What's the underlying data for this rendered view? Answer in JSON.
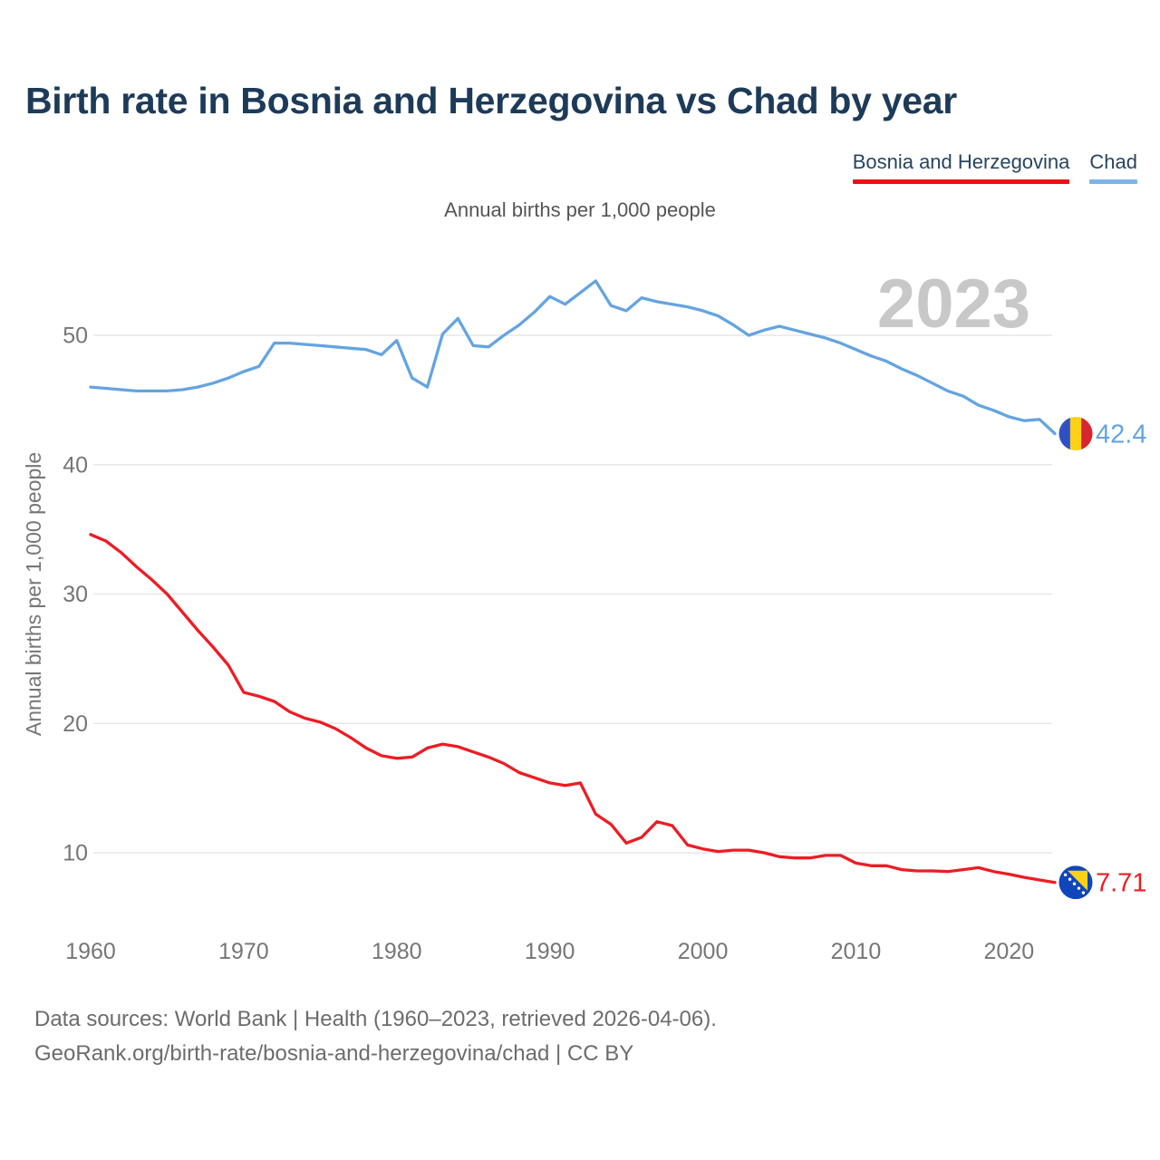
{
  "header": {
    "title": "Birth rate in Bosnia and Herzegovina vs Chad by year"
  },
  "legend": [
    {
      "label": "Bosnia and Herzegovina",
      "underline_color": "#ee1111"
    },
    {
      "label": "Chad",
      "underline_color": "#7db5e8"
    }
  ],
  "watermark": "2023",
  "footer": {
    "line1": "Data sources: World Bank | Health (1960–2023, retrieved 2026-04-06).",
    "line2": "GeoRank.org/birth-rate/bosnia-and-herzegovina/chad | CC BY"
  },
  "colors": {
    "title_text": "#1d3b59",
    "legend_text": "#27455f",
    "subtitle_text": "#555555",
    "axis_text": "#767676",
    "gridline": "#e7e7e7",
    "watermark_text": "#c8c8c8",
    "footer_text": "#6c6c6c",
    "background": "#ffffff"
  },
  "flag_colors": {
    "chad": {
      "stripes": [
        "#3150c2",
        "#fcd116",
        "#d8252f"
      ]
    },
    "bosnia": {
      "field": "#1046bc",
      "triangle": "#fdd216",
      "stars": "#ffffff"
    }
  },
  "chart_data": {
    "type": "line",
    "title": "Birth rate in Bosnia and Herzegovina vs Chad by year",
    "subtitle": "Annual births per 1,000 people",
    "ylabel": "Annual births per 1,000 people",
    "xlabel": "",
    "x_start": 1960,
    "x_end": 2023,
    "xticks": [
      1960,
      1970,
      1980,
      1990,
      2000,
      2010,
      2020
    ],
    "yticks": [
      10,
      20,
      30,
      40,
      50
    ],
    "grid": "horizontal",
    "legend_position": "top-right",
    "series": [
      {
        "name": "Chad",
        "color": "#64a4e1",
        "end_label": "42.4",
        "flag_icon": "chad-flag-icon",
        "values": [
          46.0,
          45.9,
          45.8,
          45.7,
          45.7,
          45.7,
          45.8,
          46.0,
          46.3,
          46.7,
          47.2,
          47.6,
          49.4,
          49.4,
          49.3,
          49.2,
          49.1,
          49.0,
          48.9,
          48.5,
          49.6,
          46.7,
          46.0,
          50.1,
          51.3,
          49.2,
          49.1,
          50.0,
          50.8,
          51.8,
          53.0,
          52.4,
          53.3,
          54.2,
          52.3,
          51.9,
          52.9,
          52.6,
          52.4,
          52.2,
          51.9,
          51.5,
          50.8,
          50.0,
          50.4,
          50.7,
          50.4,
          50.1,
          49.8,
          49.4,
          48.9,
          48.4,
          48.0,
          47.4,
          46.9,
          46.3,
          45.7,
          45.3,
          44.6,
          44.2,
          43.7,
          43.4,
          43.5,
          42.4
        ]
      },
      {
        "name": "Bosnia and Herzegovina",
        "color": "#ed1c24",
        "end_label": "7.71",
        "flag_icon": "bosnia-and-herzegovina-flag-icon",
        "values": [
          34.6,
          34.1,
          33.2,
          32.1,
          31.1,
          30.0,
          28.6,
          27.2,
          25.9,
          24.5,
          22.4,
          22.1,
          21.7,
          20.9,
          20.4,
          20.1,
          19.6,
          18.9,
          18.1,
          17.5,
          17.3,
          17.4,
          18.1,
          18.4,
          18.2,
          17.8,
          17.4,
          16.9,
          16.2,
          15.8,
          15.4,
          15.2,
          15.4,
          13.0,
          12.2,
          10.75,
          11.2,
          12.4,
          12.1,
          10.6,
          10.3,
          10.1,
          10.2,
          10.2,
          10.0,
          9.7,
          9.6,
          9.6,
          9.8,
          9.8,
          9.2,
          9.0,
          9.0,
          8.7,
          8.6,
          8.6,
          8.55,
          8.7,
          8.85,
          8.55,
          8.35,
          8.1,
          7.9,
          7.71
        ]
      }
    ]
  }
}
